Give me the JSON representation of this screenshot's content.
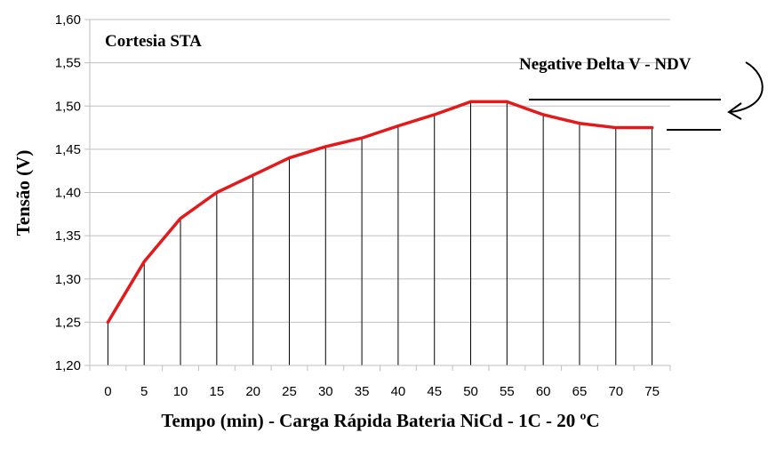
{
  "chart_data": {
    "type": "line",
    "title": "",
    "xlabel": "Tempo (min) - Carga Rápida Bateria NiCd - 1C - 20 ºC",
    "ylabel": "Tensão (V)",
    "x": [
      0,
      5,
      10,
      15,
      20,
      25,
      30,
      35,
      40,
      45,
      50,
      55,
      60,
      65,
      70,
      75
    ],
    "series": [
      {
        "values": [
          1.25,
          1.32,
          1.37,
          1.4,
          1.42,
          1.44,
          1.453,
          1.463,
          1.477,
          1.49,
          1.505,
          1.505,
          1.49,
          1.48,
          1.475,
          1.475
        ],
        "color": "#e31a1c"
      }
    ],
    "xlim": [
      0,
      75
    ],
    "ylim": [
      1.2,
      1.6
    ],
    "y_ticks": [
      "1,20",
      "1,25",
      "1,30",
      "1,35",
      "1,40",
      "1,45",
      "1,50",
      "1,55",
      "1,60"
    ],
    "x_ticks": [
      "0",
      "5",
      "10",
      "15",
      "20",
      "25",
      "30",
      "35",
      "40",
      "45",
      "50",
      "55",
      "60",
      "65",
      "70",
      "75"
    ],
    "horizontal_grid": true,
    "drop_lines": true,
    "annotations": {
      "credit": "Cortesia STA",
      "ndv_label": "Negative Delta V - NDV"
    },
    "colors": {
      "line": "#e31a1c",
      "grid": "#bfbfbf",
      "axis": "#000000"
    }
  }
}
